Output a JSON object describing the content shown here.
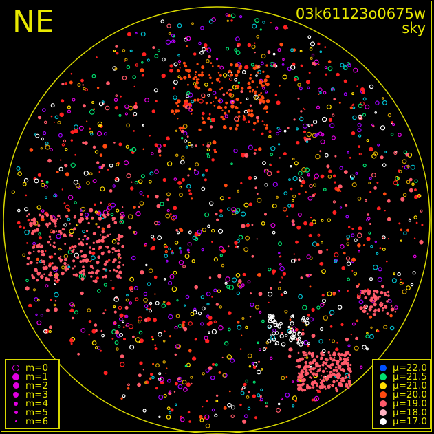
{
  "direction_label": "NE",
  "field_id": "03k61123o0675w",
  "filter_label": "sky",
  "frame_color": "#d8d800",
  "magnitude_legend": [
    {
      "label": "m=0",
      "style": "ring"
    },
    {
      "label": "m=1",
      "size": 5
    },
    {
      "label": "m=2",
      "size": 4.5
    },
    {
      "label": "m=3",
      "size": 4
    },
    {
      "label": "m=4",
      "size": 3
    },
    {
      "label": "m=5",
      "size": 2.5
    },
    {
      "label": "m=6",
      "size": 1.5
    }
  ],
  "magnitude_color": "#e000e0",
  "surface_brightness_legend": [
    {
      "label": "μ=22.0",
      "color": "#0050ff"
    },
    {
      "label": "μ=21.5",
      "color": "#00e070"
    },
    {
      "label": "μ=21.0",
      "color": "#ffdd00"
    },
    {
      "label": "μ=20.0",
      "color": "#ff4a10"
    },
    {
      "label": "μ=19.0",
      "color": "#ff5a6a"
    },
    {
      "label": "μ=18.0",
      "color": "#ffb0c0"
    },
    {
      "label": "μ=17.0",
      "color": "#ffffff"
    }
  ]
}
